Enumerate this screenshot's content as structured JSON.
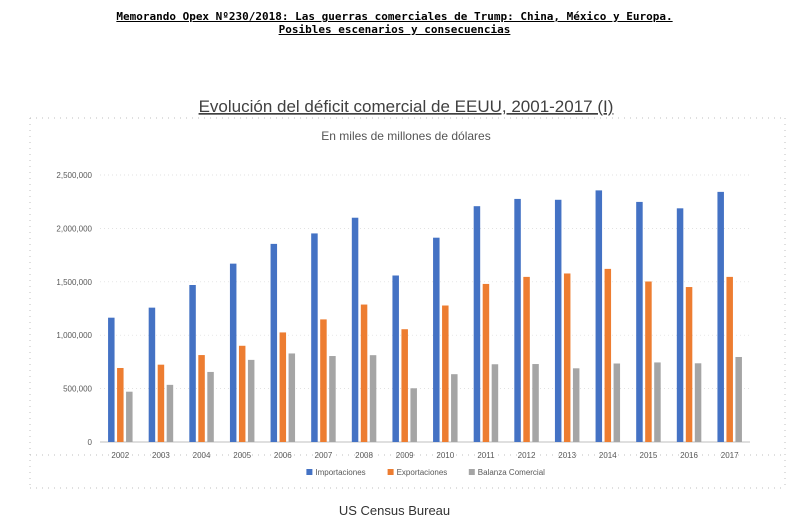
{
  "memo": {
    "line1": "Memorando Opex Nº230/2018: Las guerras comerciales de Trump: China, México y Europa.",
    "line2": "Posibles escenarios y consecuencias"
  },
  "source": "US Census Bureau",
  "chart_data": {
    "type": "bar",
    "title": "Evolución del déficit comercial de EEUU, 2001-2017 (I)",
    "subtitle": "En miles de millones de dólares",
    "xlabel": "",
    "ylabel": "",
    "categories": [
      "2002",
      "2003",
      "2004",
      "2005",
      "2006",
      "2007",
      "2008",
      "2009",
      "2010",
      "2011",
      "2012",
      "2013",
      "2014",
      "2015",
      "2016",
      "2017"
    ],
    "ylim": [
      0,
      2500000
    ],
    "yticks": [
      0,
      500000,
      1000000,
      1500000,
      2000000,
      2500000
    ],
    "ytick_labels": [
      "0",
      "500,000",
      "1,000,000",
      "1,500,000",
      "2,000,000",
      "2,500,000"
    ],
    "grid": true,
    "legend_position": "bottom",
    "series": [
      {
        "name": "Importaciones",
        "color": "#4472c4",
        "values": [
          1164000,
          1258000,
          1470000,
          1670000,
          1855000,
          1953000,
          2100000,
          1559000,
          1913000,
          2208000,
          2276000,
          2268000,
          2356000,
          2248000,
          2188000,
          2342000
        ]
      },
      {
        "name": "Exportaciones",
        "color": "#ed7d31",
        "values": [
          693000,
          724000,
          814000,
          901000,
          1026000,
          1148000,
          1287000,
          1056000,
          1278000,
          1480000,
          1546000,
          1578000,
          1621000,
          1503000,
          1451000,
          1546000
        ]
      },
      {
        "name": "Balanza Comercial",
        "color": "#a5a5a5",
        "values": [
          471000,
          535000,
          656000,
          769000,
          829000,
          805000,
          813000,
          503000,
          635000,
          728000,
          730000,
          690000,
          735000,
          745000,
          737000,
          796000
        ]
      }
    ]
  }
}
